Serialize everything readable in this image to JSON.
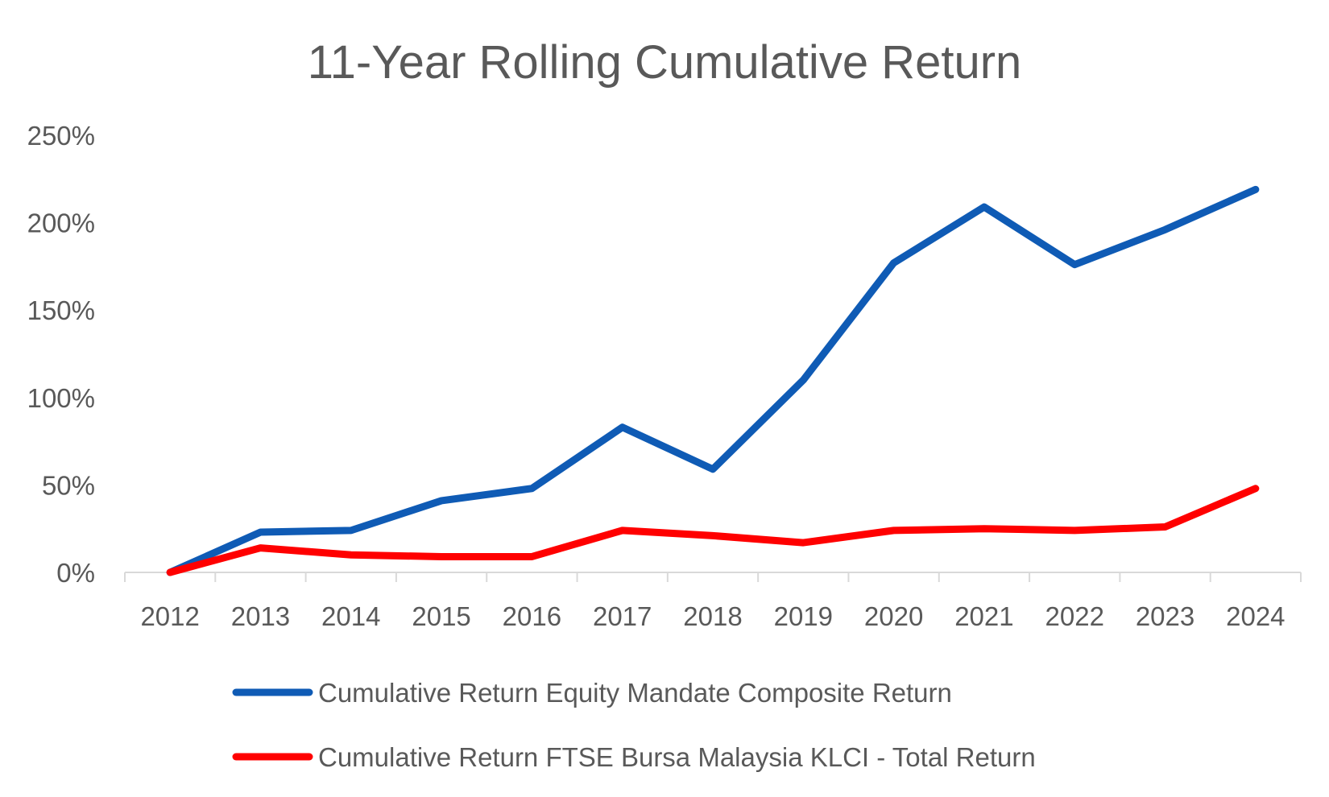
{
  "chart_data": {
    "type": "line",
    "title": "11-Year Rolling Cumulative Return",
    "xlabel": "",
    "ylabel": "",
    "x": [
      "2012",
      "2013",
      "2014",
      "2015",
      "2016",
      "2017",
      "2018",
      "2019",
      "2020",
      "2021",
      "2022",
      "2023",
      "2024"
    ],
    "y_ticks": [
      "0%",
      "50%",
      "100%",
      "150%",
      "200%",
      "250%"
    ],
    "ylim": [
      0,
      250
    ],
    "grid": false,
    "legend_position": "bottom",
    "series": [
      {
        "name": "Cumulative Return Equity Mandate Composite Return",
        "color": "#0f5bb5",
        "values": [
          0,
          23,
          24,
          41,
          48,
          83,
          59,
          110,
          177,
          209,
          176,
          196,
          219
        ]
      },
      {
        "name": "Cumulative Return FTSE Bursa Malaysia KLCI - Total Return",
        "color": "#ff0000",
        "values": [
          0,
          14,
          10,
          9,
          9,
          24,
          21,
          17,
          24,
          25,
          24,
          26,
          48
        ]
      }
    ]
  }
}
